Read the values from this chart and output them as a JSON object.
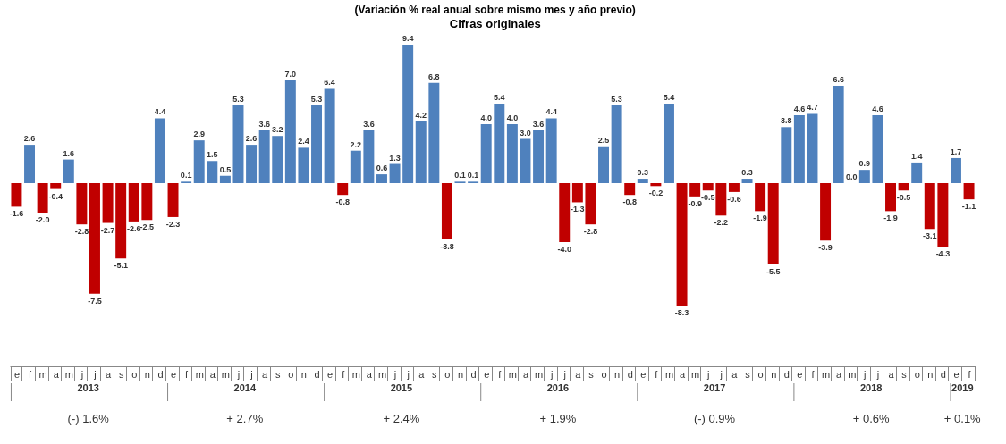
{
  "chart_data": {
    "type": "bar",
    "title": "(Variación % real anual sobre mismo mes y año previo)",
    "subtitle": "Cifras originales",
    "categories": [
      "e",
      "f",
      "m",
      "a",
      "m",
      "j",
      "j",
      "a",
      "s",
      "o",
      "n",
      "d",
      "e",
      "f",
      "m",
      "a",
      "m",
      "j",
      "j",
      "a",
      "s",
      "o",
      "n",
      "d",
      "e",
      "f",
      "m",
      "a",
      "m",
      "j",
      "j",
      "a",
      "s",
      "o",
      "n",
      "d",
      "e",
      "f",
      "m",
      "a",
      "m",
      "j",
      "j",
      "a",
      "s",
      "o",
      "n",
      "d",
      "e",
      "f",
      "m",
      "a",
      "m",
      "j",
      "j",
      "a",
      "s",
      "o",
      "n",
      "d",
      "e",
      "f",
      "m",
      "a",
      "m",
      "j",
      "j",
      "a",
      "s",
      "o",
      "n",
      "d",
      "e",
      "f"
    ],
    "values": [
      -1.6,
      2.6,
      -2.0,
      -0.4,
      1.6,
      -2.8,
      -7.5,
      -2.7,
      -5.1,
      -2.6,
      -2.5,
      4.4,
      -2.3,
      0.1,
      2.9,
      1.5,
      0.5,
      5.3,
      2.6,
      3.6,
      3.2,
      7.0,
      2.4,
      5.3,
      6.4,
      -0.8,
      2.2,
      3.6,
      0.6,
      1.3,
      9.4,
      4.2,
      6.8,
      -3.8,
      0.1,
      0.1,
      4.0,
      5.4,
      4.0,
      3.0,
      3.6,
      4.4,
      -4.0,
      -1.3,
      -2.8,
      2.5,
      5.3,
      -0.8,
      0.3,
      -0.2,
      5.4,
      -8.3,
      -0.9,
      -0.5,
      -2.2,
      -0.6,
      0.3,
      -1.9,
      -5.5,
      3.8,
      4.6,
      4.7,
      -3.9,
      6.6,
      0.0,
      0.9,
      4.6,
      -1.9,
      -0.5,
      1.4,
      -3.1,
      -4.3,
      1.7,
      -1.1
    ],
    "colors": [
      "#c00000",
      "#4f81bd",
      "#c00000",
      "#c00000",
      "#4f81bd",
      "#c00000",
      "#c00000",
      "#c00000",
      "#c00000",
      "#c00000",
      "#c00000",
      "#4f81bd",
      "#c00000",
      "#4f81bd",
      "#4f81bd",
      "#4f81bd",
      "#4f81bd",
      "#4f81bd",
      "#4f81bd",
      "#4f81bd",
      "#4f81bd",
      "#4f81bd",
      "#4f81bd",
      "#4f81bd",
      "#4f81bd",
      "#c00000",
      "#4f81bd",
      "#4f81bd",
      "#4f81bd",
      "#4f81bd",
      "#4f81bd",
      "#4f81bd",
      "#4f81bd",
      "#c00000",
      "#4f81bd",
      "#4f81bd",
      "#4f81bd",
      "#4f81bd",
      "#4f81bd",
      "#4f81bd",
      "#4f81bd",
      "#4f81bd",
      "#c00000",
      "#c00000",
      "#c00000",
      "#4f81bd",
      "#4f81bd",
      "#c00000",
      "#4f81bd",
      "#c00000",
      "#4f81bd",
      "#c00000",
      "#c00000",
      "#c00000",
      "#c00000",
      "#c00000",
      "#4f81bd",
      "#c00000",
      "#c00000",
      "#4f81bd",
      "#4f81bd",
      "#4f81bd",
      "#c00000",
      "#4f81bd",
      "#4f81bd",
      "#4f81bd",
      "#4f81bd",
      "#c00000",
      "#c00000",
      "#4f81bd",
      "#c00000",
      "#c00000",
      "#4f81bd",
      "#c00000"
    ],
    "value_labels": [
      "-1.6",
      "2.6",
      "-2.0",
      "-0.4",
      "1.6",
      "-2.8",
      "-7.5",
      "-2.7",
      "-5.1",
      "-2.6",
      "-2.5",
      "4.4",
      "-2.3",
      "0.1",
      "2.9",
      "1.5",
      "0.5",
      "5.3",
      "2.6",
      "3.6",
      "3.2",
      "7.0",
      "2.4",
      "5.3",
      "6.4",
      "-0.8",
      "2.2",
      "3.6",
      "0.6",
      "1.3",
      "9.4",
      "4.2",
      "6.8",
      "-3.8",
      "0.1",
      "0.1",
      "4.0",
      "5.4",
      "4.0",
      "3.0",
      "3.6",
      "4.4",
      "-4.0",
      "-1.3",
      "-2.8",
      "2.5",
      "5.3",
      "-0.8",
      "0.3",
      "-0.2",
      "5.4",
      "-8.3",
      "-0.9",
      "-0.5",
      "-2.2",
      "-0.6",
      "0.3",
      "-1.9",
      "-5.5",
      "3.8",
      "4.6",
      "4.7",
      "-3.9",
      "6.6",
      "0.0",
      "0.9",
      "4.6",
      "-1.9",
      "-0.5",
      "1.4",
      "-3.1",
      "-4.3",
      "1.7",
      "-1.1"
    ],
    "annotations": [
      "2013",
      "2014",
      "2015",
      "2016",
      "2017",
      "2018",
      "2019",
      "(-) 1.6%",
      "+ 2.7%",
      "+ 2.4%",
      "+ 1.9%",
      "(-) 0.9%",
      "+ 0.6%",
      "+ 0.1%"
    ]
  }
}
